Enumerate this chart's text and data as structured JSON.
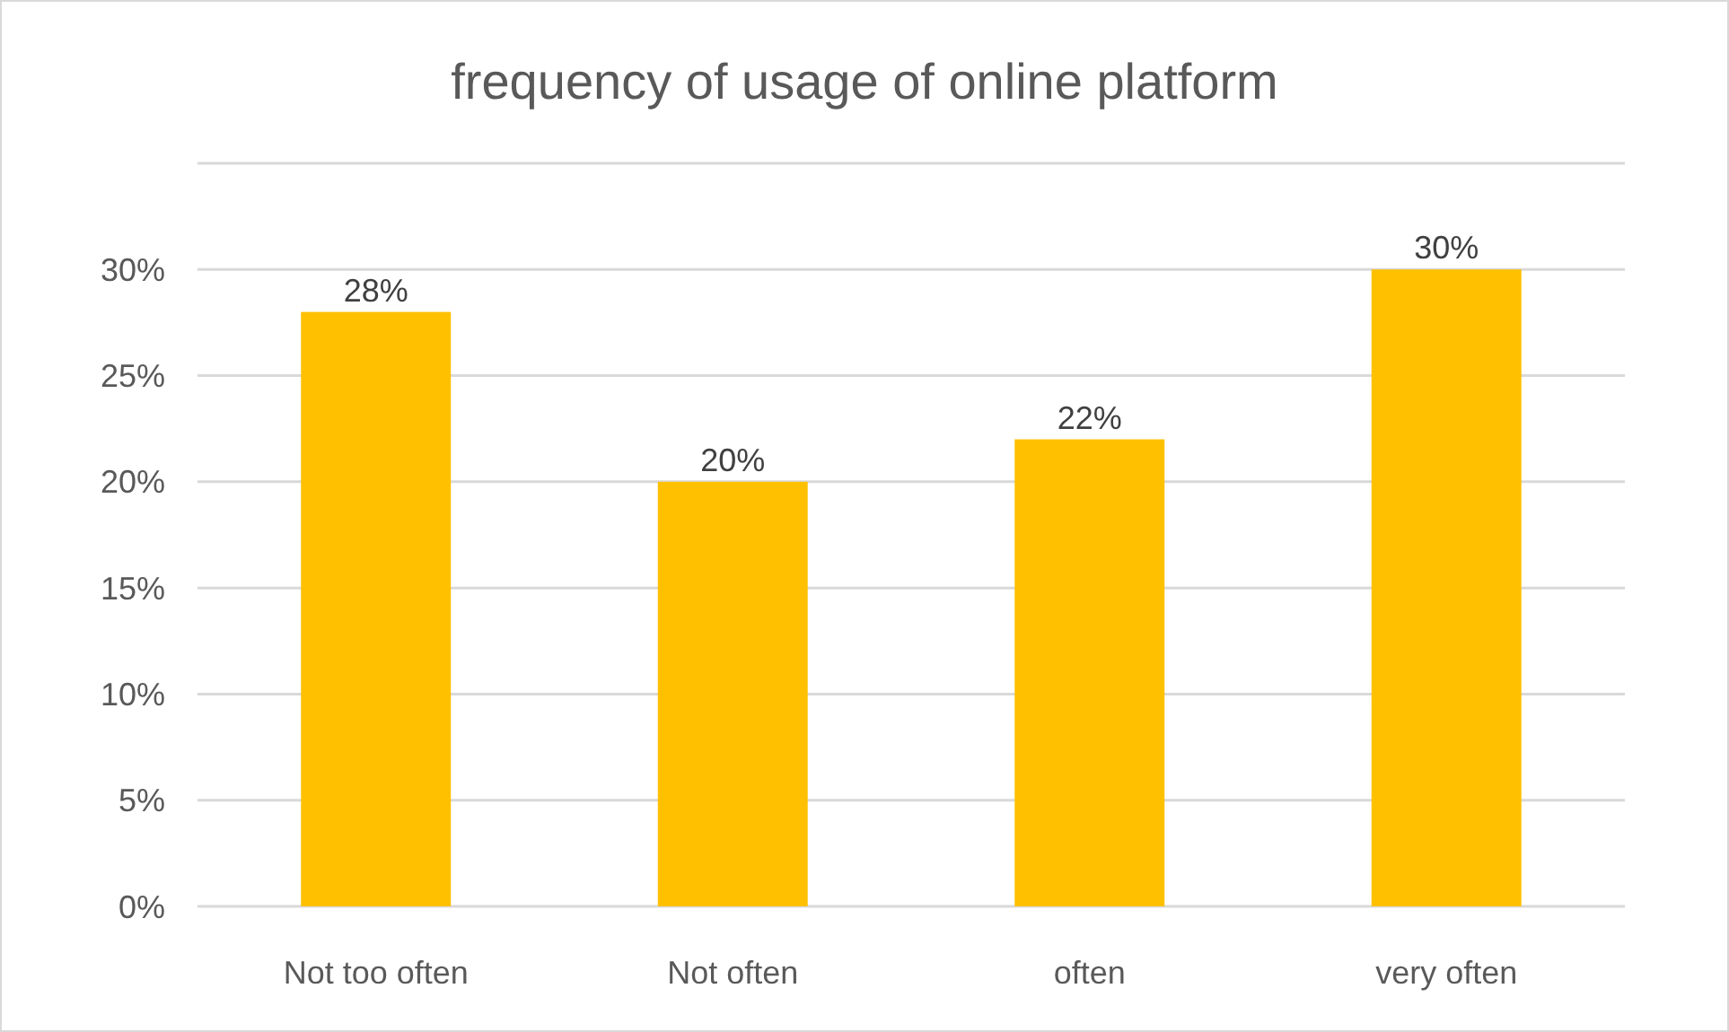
{
  "chart_data": {
    "type": "bar",
    "title": "frequency of usage of online platform",
    "categories": [
      "Not too often",
      "Not often",
      "often",
      "very often"
    ],
    "values": [
      28,
      20,
      22,
      30
    ],
    "color": "#ffc000",
    "value_labels": [
      "28%",
      "20%",
      "22%",
      "30%"
    ],
    "ylim": [
      0,
      35
    ],
    "yticks": [
      {
        "value": 0,
        "label": "0%"
      },
      {
        "value": 5,
        "label": "5%"
      },
      {
        "value": 10,
        "label": "10%"
      },
      {
        "value": 15,
        "label": "15%"
      },
      {
        "value": 20,
        "label": "20%"
      },
      {
        "value": 25,
        "label": "25%"
      },
      {
        "value": 30,
        "label": "30%"
      },
      {
        "value": 35,
        "label": null
      }
    ],
    "grid": "y"
  }
}
